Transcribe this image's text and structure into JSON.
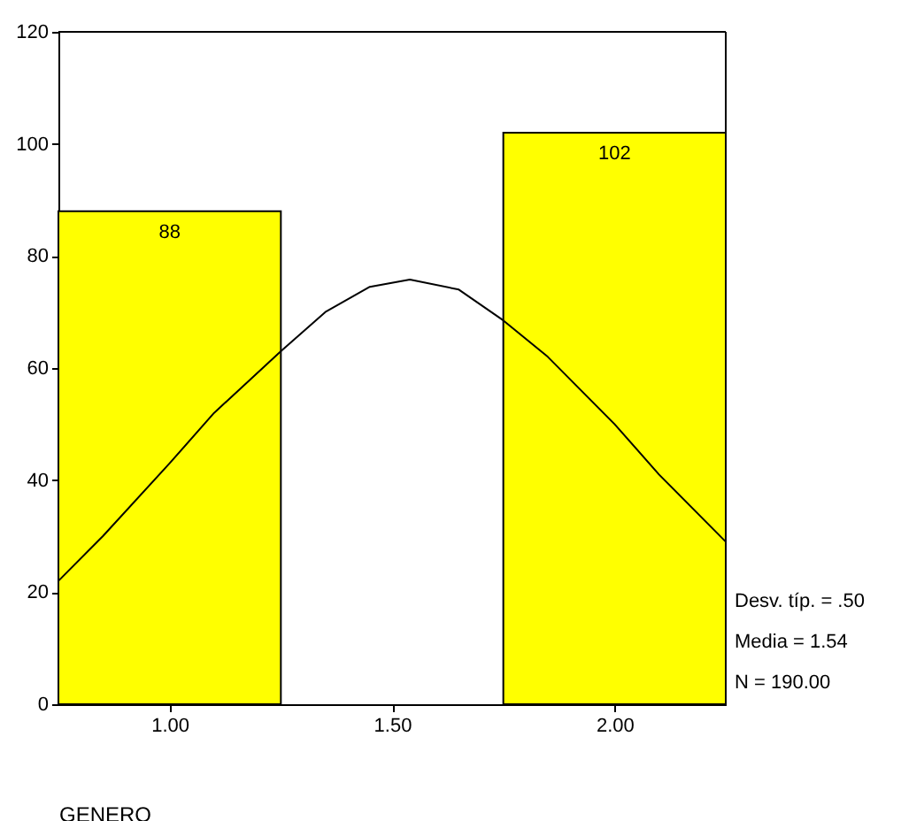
{
  "chart_data": {
    "type": "histogram",
    "xlabel": "GENERO",
    "bins": [
      0.75,
      1.25,
      1.75,
      2.25
    ],
    "series": [
      {
        "color": "#ffff00",
        "values": [
          88,
          0,
          102
        ],
        "value_labels": [
          "88",
          null,
          "102"
        ]
      },
      {
        "type": "line",
        "color": "#000000",
        "x": [
          0.75,
          0.85,
          1.0,
          1.1,
          1.25,
          1.35,
          1.45,
          1.54,
          1.65,
          1.75,
          1.85,
          2.0,
          2.1,
          2.25
        ],
        "values": [
          22,
          30,
          43,
          52,
          63,
          70,
          74.5,
          75.8,
          74,
          68.5,
          62,
          50,
          41,
          29
        ]
      }
    ],
    "xlim": [
      0.75,
      2.25
    ],
    "xticks": [
      {
        "value": 1,
        "label": "1.00"
      },
      {
        "value": 1.5,
        "label": "1.50"
      },
      {
        "value": 2,
        "label": "2.00"
      }
    ],
    "ylim": [
      0,
      120
    ],
    "yticks": [
      0,
      20,
      40,
      60,
      80,
      100,
      120
    ],
    "grid": false,
    "legend": false,
    "annotations": [
      "Desv. típ. = .50",
      "Media = 1.54",
      "N = 190.00"
    ]
  }
}
